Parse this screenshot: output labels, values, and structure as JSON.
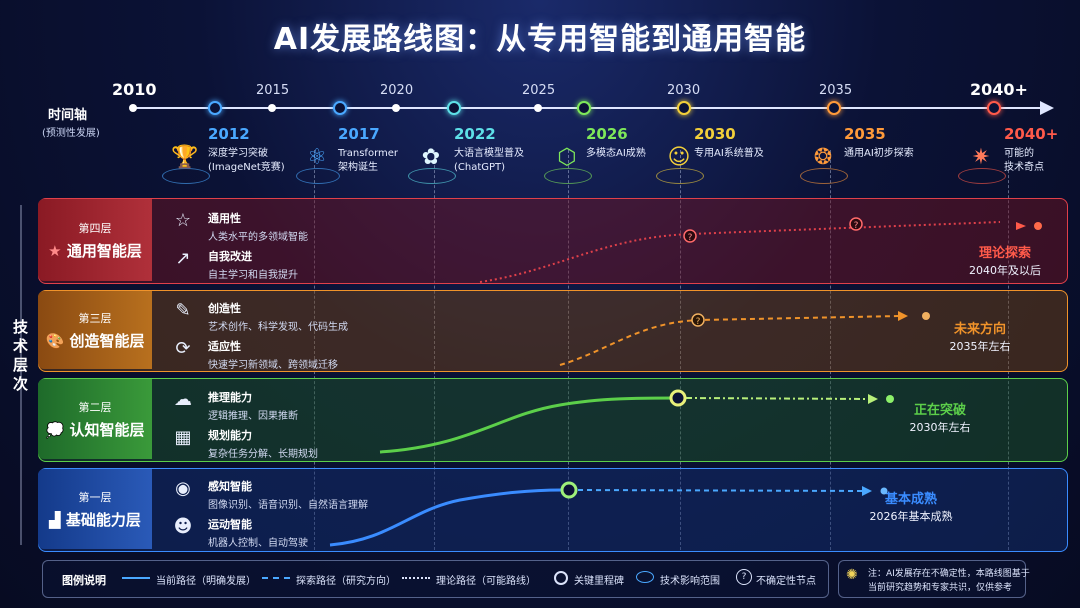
{
  "title": "AI发展路线图：从专用智能到通用智能",
  "axis": {
    "label": "时间轴",
    "sub": "(预测性发展)",
    "years": [
      "2010",
      "2015",
      "2020",
      "2025",
      "2030",
      "2035",
      "2040+"
    ]
  },
  "milestones": [
    {
      "year": "2012",
      "text1": "深度学习突破",
      "text2": "(ImageNet竞赛)",
      "icon": "trophy-icon",
      "glyph": "🏆",
      "color": "#4aa8ff"
    },
    {
      "year": "2017",
      "text1": "Transformer",
      "text2": "架构诞生",
      "icon": "network-icon",
      "glyph": "⚛",
      "color": "#4aa8ff"
    },
    {
      "year": "2022",
      "text1": "大语言模型普及",
      "text2": "(ChatGPT)",
      "icon": "chatgpt-icon",
      "glyph": "✿",
      "color": "#5ee0e8"
    },
    {
      "year": "2026",
      "text1": "多模态AI成熟",
      "text2": "",
      "icon": "cube-icon",
      "glyph": "⬡",
      "color": "#7ee85a"
    },
    {
      "year": "2030",
      "text1": "专用AI系统普及",
      "text2": "",
      "icon": "robot-icon",
      "glyph": "☺",
      "color": "#f2cf3a"
    },
    {
      "year": "2035",
      "text1": "通用AI初步探索",
      "text2": "",
      "icon": "brain-icon",
      "glyph": "❂",
      "color": "#ff9a3a"
    },
    {
      "year": "2040+",
      "text1": "可能的",
      "text2": "技术奇点",
      "icon": "starburst-icon",
      "glyph": "✷",
      "color": "#ff5a4a"
    }
  ],
  "side_label": "技术层次",
  "layers": [
    {
      "sub": "第四层",
      "name": "通用智能层",
      "icon": "star-icon",
      "glyph": "★",
      "color": "#e0404a",
      "bg": "rgba(120,20,30,0.45)",
      "caps": [
        {
          "title": "通用性",
          "desc": "人类水平的多领域智能",
          "icon": "star-outline-icon",
          "glyph": "☆"
        },
        {
          "title": "自我改进",
          "desc": "自主学习和自我提升",
          "icon": "growth-chart-icon",
          "glyph": "↗"
        }
      ],
      "status_main": "理论探索",
      "status_sub": "2040年及以后"
    },
    {
      "sub": "第三层",
      "name": "创造智能层",
      "icon": "palette-icon",
      "glyph": "🎨",
      "color": "#f0932a",
      "bg": "rgba(120,70,20,0.45)",
      "caps": [
        {
          "title": "创造性",
          "desc": "艺术创作、科学发现、代码生成",
          "icon": "palette-outline-icon",
          "glyph": "✎"
        },
        {
          "title": "适应性",
          "desc": "快速学习新领域、跨领域迁移",
          "icon": "refresh-icon",
          "glyph": "⟳"
        }
      ],
      "status_main": "未来方向",
      "status_sub": "2035年左右"
    },
    {
      "sub": "第二层",
      "name": "认知智能层",
      "icon": "thought-bubble-icon",
      "glyph": "💭",
      "color": "#5ccf4a",
      "bg": "rgba(30,90,40,0.45)",
      "caps": [
        {
          "title": "推理能力",
          "desc": "逻辑推理、因果推断",
          "icon": "cloud-icon",
          "glyph": "☁"
        },
        {
          "title": "规划能力",
          "desc": "复杂任务分解、长期规划",
          "icon": "map-icon",
          "glyph": "▦"
        }
      ],
      "status_main": "正在突破",
      "status_sub": "2030年左右"
    },
    {
      "sub": "第一层",
      "name": "基础能力层",
      "icon": "blocks-icon",
      "glyph": "▟",
      "color": "#3a8cff",
      "bg": "rgba(20,50,120,0.45)",
      "caps": [
        {
          "title": "感知智能",
          "desc": "图像识别、语音识别、自然语言理解",
          "icon": "eye-icon",
          "glyph": "◉"
        },
        {
          "title": "运动智能",
          "desc": "机器人控制、自动驾驶",
          "icon": "robot-face-icon",
          "glyph": "☻"
        }
      ],
      "status_main": "基本成熟",
      "status_sub": "2026年基本成熟"
    }
  ],
  "legend": {
    "title": "图例说明",
    "items": [
      {
        "label": "当前路径（明确发展）",
        "kind": "solid"
      },
      {
        "label": "探索路径（研究方向）",
        "kind": "dashed"
      },
      {
        "label": "理论路径（可能路线）",
        "kind": "dotted"
      },
      {
        "label": "关键里程碑",
        "kind": "ring"
      },
      {
        "label": "技术影响范围",
        "kind": "rings"
      },
      {
        "label": "不确定性节点",
        "kind": "question"
      }
    ]
  },
  "note": {
    "icon": "lightbulb-icon",
    "text1": "注：AI发展存在不确定性，本路线图基于",
    "text2": "当前研究趋势和专家共识，仅供参考"
  }
}
